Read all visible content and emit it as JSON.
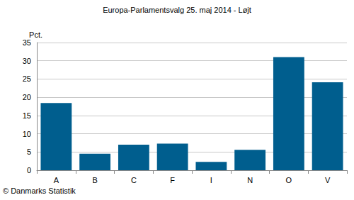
{
  "chart_data": {
    "type": "bar",
    "title": "Europa-Parlamentsvalg 25. maj 2014 - Løjt",
    "ylabel": "Pct.",
    "footnote": "© Danmarks Statistik",
    "categories": [
      "A",
      "B",
      "C",
      "F",
      "I",
      "N",
      "O",
      "V"
    ],
    "values": [
      18.4,
      4.5,
      7.0,
      7.3,
      2.3,
      5.6,
      31.0,
      24.1
    ],
    "color": "#005e8e",
    "ylim": [
      0,
      35
    ],
    "yticks": [
      0,
      5,
      10,
      15,
      20,
      25,
      30,
      35
    ],
    "grid": true
  }
}
